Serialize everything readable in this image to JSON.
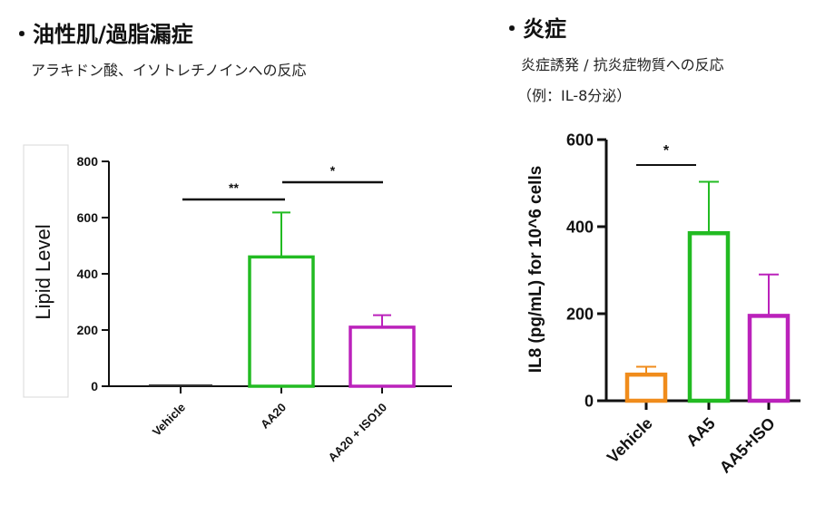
{
  "left_panel": {
    "heading": "・油性肌/過脂漏症",
    "subtitle": "アラキドン酸、イソトレチノインへの反応"
  },
  "right_panel": {
    "heading": "・炎症",
    "subtitle_line1": "炎症誘発 / 抗炎症物質への反応",
    "subtitle_line2": "（例：IL-8分泌）"
  },
  "chart_data": [
    {
      "type": "bar",
      "ylabel": "Lipid Level",
      "ylim": [
        0,
        800
      ],
      "yticks": [
        0,
        200,
        400,
        600,
        800
      ],
      "categories": [
        "Vehicle",
        "AA20",
        "AA20 + ISO10"
      ],
      "values": [
        0,
        460,
        210
      ],
      "error_upper": [
        0,
        618,
        253
      ],
      "colors": [
        "#333333",
        "#22bb22",
        "#bb22bb"
      ],
      "significance": [
        {
          "from": 0,
          "to": 1,
          "label": "**"
        },
        {
          "from": 1,
          "to": 2,
          "label": "*"
        }
      ]
    },
    {
      "type": "bar",
      "ylabel": "IL8 (pg/mL) for 10^6 cells",
      "ylim": [
        0,
        600
      ],
      "yticks": [
        0,
        200,
        400,
        600
      ],
      "categories": [
        "Vehicle",
        "AA5",
        "AA5+ISO"
      ],
      "values": [
        60,
        385,
        195
      ],
      "error_upper": [
        78,
        503,
        290
      ],
      "colors": [
        "#f08c1c",
        "#22bb22",
        "#bb22bb"
      ],
      "significance": [
        {
          "from": 0,
          "to": 1,
          "label": "*"
        }
      ]
    }
  ]
}
